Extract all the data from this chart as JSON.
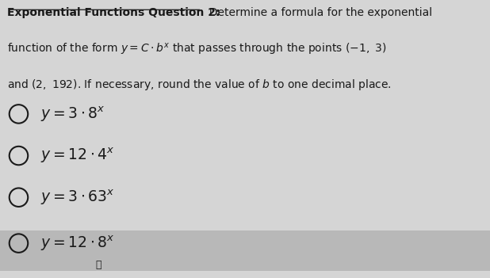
{
  "title_bold": "Exponential Functions Question 2:",
  "title_rest": "  Determine a formula for the exponential",
  "line2": "function of the form $y = C \\cdot b^x$ that passes through the points $(-1,\\ 3)$",
  "line3": "and $(2,\\ 192)$. If necessary, round the value of $b$ to one decimal place.",
  "options": [
    "$y = 3 \\cdot 8^x$",
    "$y = 12 \\cdot 4^x$",
    "$y = 3 \\cdot 63^x$",
    "$y = 12 \\cdot 8^x$"
  ],
  "highlighted_option_index": 3,
  "background_color": "#d5d5d5",
  "highlight_bg_color": "#b8b8b8",
  "text_color": "#1a1a1a",
  "font_size_title": 10.0,
  "font_size_options": 13.5
}
